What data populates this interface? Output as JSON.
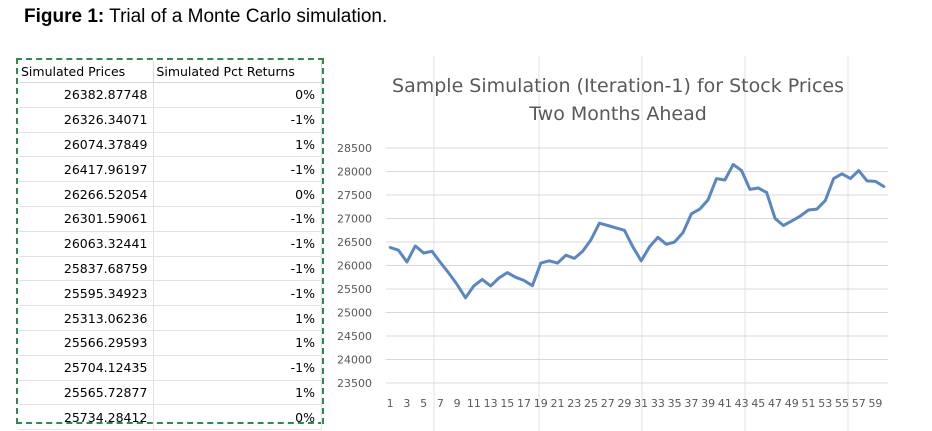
{
  "caption": {
    "label": "Figure 1:",
    "text": " Trial of a Monte Carlo simulation."
  },
  "table": {
    "headers": [
      "Simulated Prices",
      "Simulated Pct Returns"
    ],
    "rows": [
      [
        "26382.87748",
        "0%"
      ],
      [
        "26326.34071",
        "-1%"
      ],
      [
        "26074.37849",
        "1%"
      ],
      [
        "26417.96197",
        "-1%"
      ],
      [
        "26266.52054",
        "0%"
      ],
      [
        "26301.59061",
        "-1%"
      ],
      [
        "26063.32441",
        "-1%"
      ],
      [
        "25837.68759",
        "-1%"
      ],
      [
        "25595.34923",
        "-1%"
      ],
      [
        "25313.06236",
        "1%"
      ],
      [
        "25566.29593",
        "1%"
      ],
      [
        "25704.12435",
        "-1%"
      ],
      [
        "25565.72877",
        "1%"
      ],
      [
        "25734.28412",
        "0%"
      ]
    ]
  },
  "chart_data": {
    "type": "line",
    "title": "Sample Simulation (Iteration-1) for Stock Prices Two Months Ahead",
    "title_lines": [
      "Sample Simulation (Iteration-1) for Stock Prices",
      "Two Months Ahead"
    ],
    "xlabel": "",
    "ylabel": "",
    "ylim": [
      23500,
      28500
    ],
    "yticks": [
      23500,
      24000,
      24500,
      25000,
      25500,
      26000,
      26500,
      27000,
      27500,
      28000,
      28500
    ],
    "x_tick_labels": [
      "1",
      "3",
      "5",
      "7",
      "9",
      "11",
      "13",
      "15",
      "17",
      "19",
      "21",
      "23",
      "25",
      "27",
      "29",
      "31",
      "33",
      "35",
      "37",
      "39",
      "41",
      "43",
      "45",
      "47",
      "49",
      "51",
      "53",
      "55",
      "57",
      "59"
    ],
    "grid": true,
    "color": "#5b86c4",
    "x": [
      1,
      2,
      3,
      4,
      5,
      6,
      7,
      8,
      9,
      10,
      11,
      12,
      13,
      14,
      15,
      16,
      17,
      18,
      19,
      20,
      21,
      22,
      23,
      24,
      25,
      26,
      27,
      28,
      29,
      30,
      31,
      32,
      33,
      34,
      35,
      36,
      37,
      38,
      39,
      40,
      41,
      42,
      43,
      44,
      45,
      46,
      47,
      48,
      49,
      50,
      51,
      52,
      53,
      54,
      55,
      56,
      57,
      58,
      59,
      60
    ],
    "values": [
      26383,
      26326,
      26074,
      26418,
      26267,
      26302,
      26063,
      25838,
      25595,
      25313,
      25566,
      25704,
      25566,
      25734,
      25850,
      25750,
      25680,
      25570,
      26050,
      26100,
      26050,
      26220,
      26150,
      26300,
      26550,
      26900,
      26850,
      26800,
      26750,
      26400,
      26100,
      26400,
      26600,
      26450,
      26500,
      26700,
      27100,
      27200,
      27400,
      27850,
      27820,
      28150,
      28020,
      27620,
      27650,
      27550,
      27000,
      26850,
      26950,
      27050,
      27180,
      27200,
      27380,
      27850,
      27950,
      27850,
      28020,
      27800,
      27790,
      27680
    ]
  }
}
